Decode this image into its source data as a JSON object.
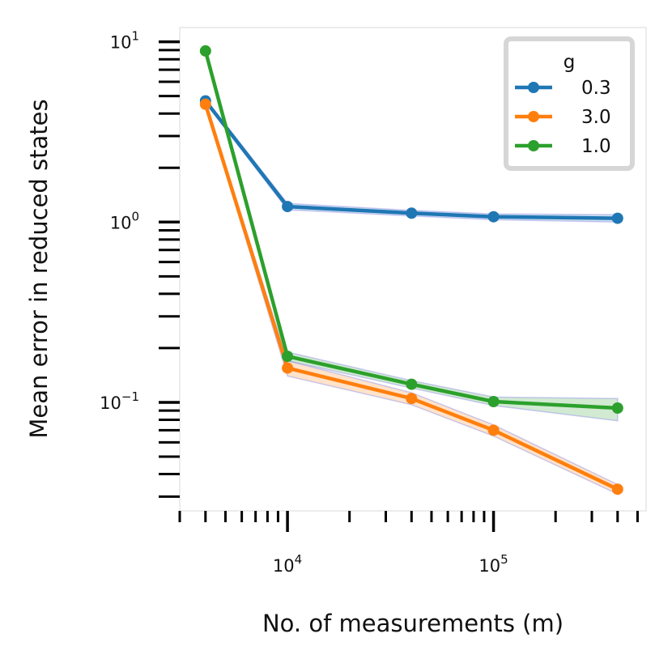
{
  "chart_data": {
    "type": "line",
    "xlabel": "No. of measurements (m)",
    "ylabel": "Mean error in reduced states",
    "xscale": "log",
    "yscale": "log",
    "xlim": [
      3000,
      550000
    ],
    "ylim": [
      0.025,
      12
    ],
    "x": [
      4000,
      10000,
      40000,
      100000,
      400000
    ],
    "x_ticks": [
      {
        "value": 10000,
        "base": "10",
        "exp": "4"
      },
      {
        "value": 100000,
        "base": "10",
        "exp": "5"
      }
    ],
    "y_ticks": [
      {
        "value": 10,
        "base": "10",
        "exp": "1"
      },
      {
        "value": 1,
        "base": "10",
        "exp": "0"
      },
      {
        "value": 0.1,
        "base": "10",
        "exp": "−1"
      }
    ],
    "legend": {
      "title": "g",
      "position": "top-right"
    },
    "series": [
      {
        "name": "0.3",
        "color": "#1f77b4",
        "values": [
          4.7,
          1.22,
          1.12,
          1.07,
          1.05
        ],
        "lower": [
          4.6,
          1.17,
          1.08,
          1.03,
          1.0
        ],
        "upper": [
          4.8,
          1.27,
          1.16,
          1.11,
          1.1
        ]
      },
      {
        "name": "3.0",
        "color": "#ff7f0e",
        "values": [
          4.5,
          0.155,
          0.105,
          0.07,
          0.033
        ],
        "lower": [
          4.4,
          0.14,
          0.097,
          0.065,
          0.031
        ],
        "upper": [
          4.6,
          0.17,
          0.113,
          0.075,
          0.035
        ]
      },
      {
        "name": "1.0",
        "color": "#2ca02c",
        "values": [
          8.9,
          0.18,
          0.126,
          0.101,
          0.093
        ],
        "lower": [
          8.8,
          0.17,
          0.12,
          0.096,
          0.079
        ],
        "upper": [
          9.0,
          0.19,
          0.132,
          0.107,
          0.105
        ]
      }
    ]
  }
}
